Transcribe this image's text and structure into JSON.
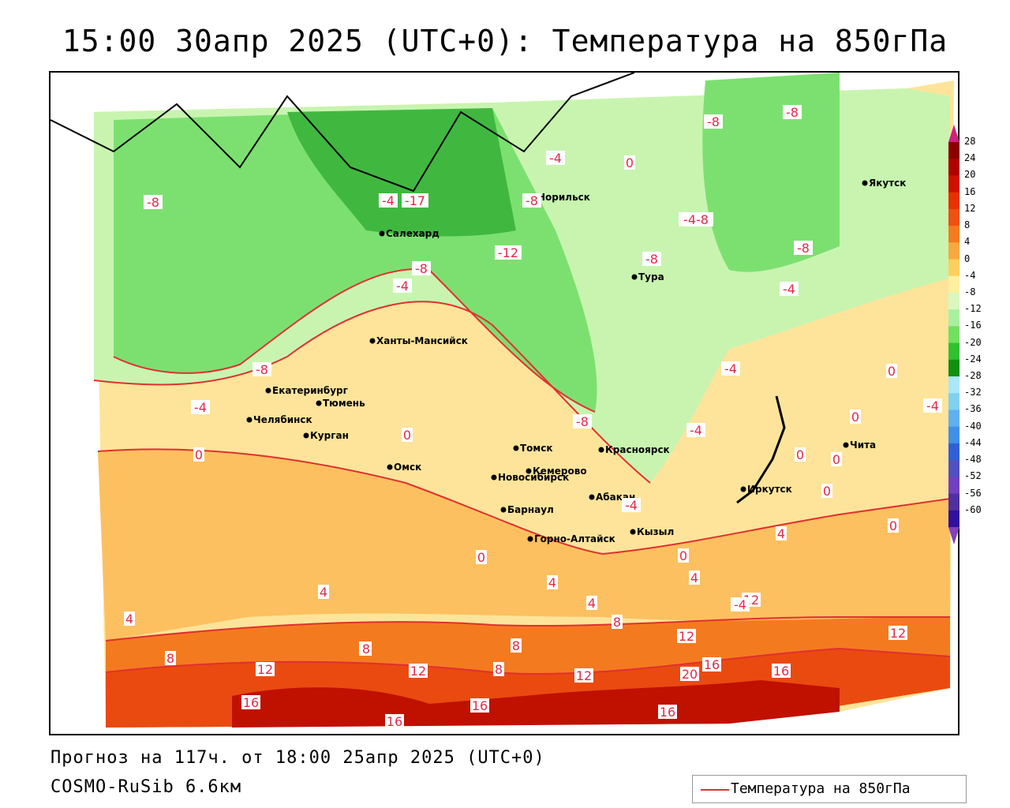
{
  "title": "15:00 30апр 2025 (UTC+0): Температура на 850гПа",
  "footer": {
    "forecast": "Прогноз на 117ч. от 18:00 25апр 2025 (UTC+0)",
    "model": "COSMO-RuSib 6.6км"
  },
  "legend": {
    "label": "Температура на 850гПа",
    "line_color": "#e03030"
  },
  "colorbar": {
    "ticks": [
      "28",
      "24",
      "20",
      "16",
      "12",
      "8",
      "4",
      "0",
      "-4",
      "-8",
      "-12",
      "-16",
      "-20",
      "-24",
      "-28",
      "-32",
      "-36",
      "-40",
      "-44",
      "-48",
      "-52",
      "-56",
      "-60"
    ],
    "colors": [
      "#8b0000",
      "#b00000",
      "#d01000",
      "#e83000",
      "#f05010",
      "#f47a20",
      "#f8a840",
      "#fcd060",
      "#fdf0a0",
      "#d8f8c0",
      "#a8f0a0",
      "#70e060",
      "#30c030",
      "#109010",
      "#a8e8f8",
      "#80d0f0",
      "#60b0f0",
      "#4090e8",
      "#3060d8",
      "#5050c0",
      "#7040c0",
      "#5030a0",
      "#3010a0"
    ],
    "top_arrow_color": "#d02080",
    "bottom_arrow_color": "#8040c0"
  },
  "cities": [
    {
      "name": "Норильск"
    },
    {
      "name": "Якутск"
    },
    {
      "name": "Салехард"
    },
    {
      "name": "Тура"
    },
    {
      "name": "Ханты-Мансийск"
    },
    {
      "name": "Екатеринбург"
    },
    {
      "name": "Тюмень"
    },
    {
      "name": "Челябинск"
    },
    {
      "name": "Курган"
    },
    {
      "name": "Омск"
    },
    {
      "name": "Новосибирск"
    },
    {
      "name": "Томск"
    },
    {
      "name": "Кемерово"
    },
    {
      "name": "Красноярск"
    },
    {
      "name": "Барнаул"
    },
    {
      "name": "Абакан"
    },
    {
      "name": "Иркутск"
    },
    {
      "name": "Чита"
    },
    {
      "name": "Кызыл"
    },
    {
      "name": "Горно-Алтайск"
    }
  ],
  "contour_labels": [
    "-8",
    "-4",
    "0",
    "-8",
    "-8",
    "-4",
    "-17",
    "-8",
    "-12",
    "-8",
    "-4-8",
    "-8",
    "-8",
    "-4",
    "-4",
    "-8",
    "-4",
    "-8",
    "-4",
    "0",
    "-4",
    "0",
    "-4",
    "0",
    "0",
    "0",
    "0",
    "0",
    "0",
    "0",
    "4",
    "4",
    "4",
    "4",
    "4",
    "8",
    "8",
    "8",
    "8",
    "8",
    "12",
    "12",
    "12",
    "12",
    "12",
    "12",
    "16",
    "16",
    "16",
    "16",
    "16",
    "16",
    "20",
    "-4",
    "0",
    "-4",
    "8",
    "4"
  ]
}
